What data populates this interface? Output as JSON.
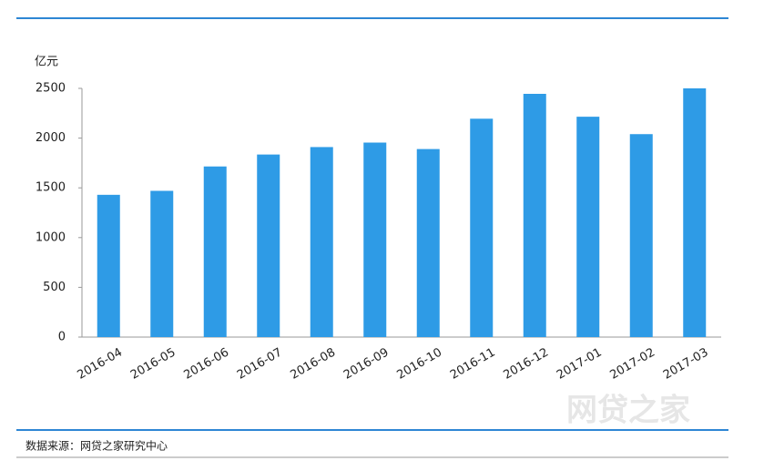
{
  "chart_data": {
    "type": "bar",
    "y_axis_label": "亿元",
    "categories": [
      "2016-04",
      "2016-05",
      "2016-06",
      "2016-07",
      "2016-08",
      "2016-09",
      "2016-10",
      "2016-11",
      "2016-12",
      "2017-01",
      "2017-02",
      "2017-03"
    ],
    "values": [
      1430,
      1470,
      1715,
      1835,
      1910,
      1955,
      1890,
      2195,
      2445,
      2215,
      2040,
      2500
    ],
    "color": "#2e9be6",
    "ylim": [
      0,
      2500
    ],
    "yticks": [
      0,
      500,
      1000,
      1500,
      2000,
      2500
    ],
    "grid": false,
    "source": "数据来源：网贷之家研究中心",
    "watermark": "网贷之家"
  }
}
